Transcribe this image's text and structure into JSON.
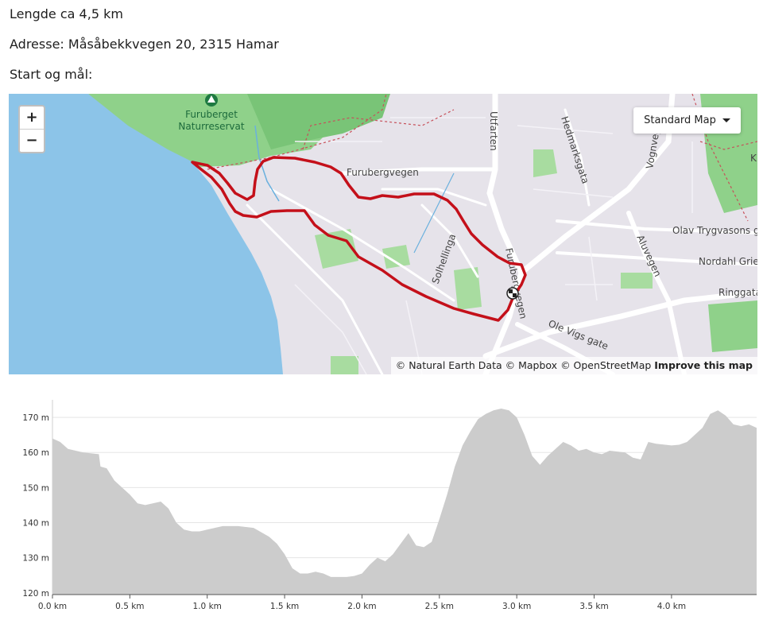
{
  "info": {
    "length": "Lengde ca 4,5 km",
    "address": "Adresse: Måsåbekkvegen 20, 2315 Hamar",
    "start": "Start og mål:"
  },
  "map": {
    "zoom_in": "+",
    "zoom_out": "−",
    "layer_select": "Standard Map",
    "attribution": {
      "natural_earth": "© Natural Earth Data",
      "mapbox": "© Mapbox",
      "osm": "© OpenStreetMap",
      "improve": "Improve this map"
    },
    "labels": {
      "park": "Furuberget\nNaturreservat",
      "furubergvegen_h": "Furubergvegen",
      "furubergvegen_v": "Furubergvegen",
      "utfarten": "Utfarten",
      "hedmarksgata": "Hedmarksgata",
      "solhellinga": "Solhellinga",
      "aluvegen": "Aluvegen",
      "olav": "Olav Trygvasons gate",
      "nordahl": "Nordahl Grieg",
      "ringgata": "Ringgata",
      "ole_vigs": "Ole Vigs gate",
      "vognvegen": "Vognvegen",
      "k": "K"
    },
    "colors": {
      "water": "#8cc4e8",
      "land": "#e6e3ea",
      "forest": "#8fd18a",
      "route": "#c4101a"
    }
  },
  "chart_data": {
    "type": "area",
    "title": "",
    "xlabel": "",
    "ylabel": "",
    "x_unit": "km",
    "y_unit": "m",
    "xlim": [
      0,
      4.55
    ],
    "ylim": [
      119.5,
      175
    ],
    "xticks": [
      "0.0 km",
      "0.5 km",
      "1.0 km",
      "1.5 km",
      "2.0 km",
      "2.5 km",
      "3.0 km",
      "3.5 km",
      "4.0 km"
    ],
    "xtick_values": [
      0,
      0.5,
      1.0,
      1.5,
      2.0,
      2.5,
      3.0,
      3.5,
      4.0
    ],
    "yticks": [
      "120 m",
      "130 m",
      "140 m",
      "150 m",
      "160 m",
      "170 m"
    ],
    "ytick_values": [
      120,
      130,
      140,
      150,
      160,
      170
    ],
    "grid": true,
    "fill_color": "#cccccc",
    "series": [
      {
        "x": [
          0,
          0.05,
          0.1,
          0.2,
          0.3,
          0.31,
          0.35,
          0.4,
          0.45,
          0.5,
          0.55,
          0.6,
          0.7,
          0.75,
          0.8,
          0.85,
          0.9,
          0.95,
          1.0,
          1.1,
          1.2,
          1.3,
          1.4,
          1.45,
          1.5,
          1.55,
          1.6,
          1.65,
          1.7,
          1.75,
          1.8,
          1.85,
          1.9,
          1.95,
          2.0,
          2.05,
          2.1,
          2.15,
          2.2,
          2.25,
          2.3,
          2.35,
          2.4,
          2.45,
          2.5,
          2.55,
          2.6,
          2.65,
          2.7,
          2.75,
          2.8,
          2.85,
          2.9,
          2.95,
          3.0,
          3.05,
          3.1,
          3.15,
          3.2,
          3.25,
          3.3,
          3.35,
          3.4,
          3.45,
          3.5,
          3.55,
          3.6,
          3.7,
          3.75,
          3.8,
          3.85,
          3.9,
          4.0,
          4.05,
          4.1,
          4.15,
          4.2,
          4.25,
          4.3,
          4.35,
          4.4,
          4.45,
          4.5,
          4.55
        ],
        "values": [
          164,
          163,
          161,
          160,
          159.5,
          156,
          155.5,
          152,
          150,
          148,
          145.5,
          145,
          146,
          144,
          140,
          138,
          137.5,
          137.5,
          138,
          139,
          139,
          138.5,
          136,
          134,
          131,
          127,
          125.5,
          125.5,
          126,
          125.5,
          124.5,
          124.5,
          124.5,
          124.8,
          125.5,
          128,
          130,
          129,
          131,
          134,
          137,
          133.5,
          133,
          134.5,
          141,
          148,
          156,
          162,
          166,
          169.5,
          171,
          172,
          172.5,
          172,
          170,
          165,
          159,
          156.5,
          159,
          161,
          163,
          162,
          160.5,
          161,
          160,
          159.5,
          160.5,
          160,
          158.5,
          158,
          163,
          162.5,
          162,
          162.2,
          163,
          165,
          167,
          171,
          172,
          170.5,
          168,
          167.5,
          168,
          167
        ]
      }
    ]
  }
}
